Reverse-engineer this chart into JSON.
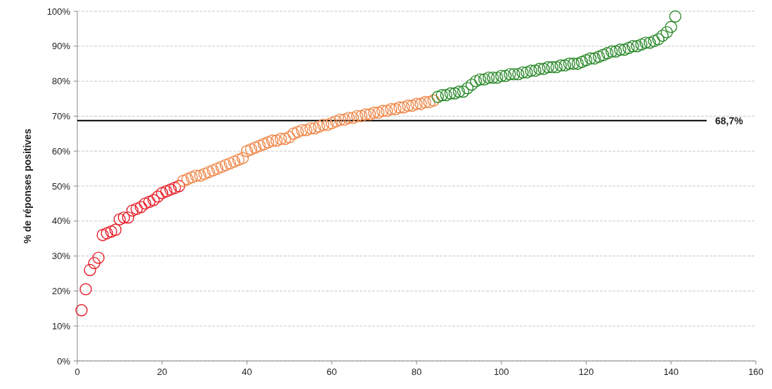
{
  "chart_data": {
    "type": "scatter",
    "ylabel": "% de réponses positives",
    "marker": "circle",
    "grid": "y",
    "xlim": [
      0,
      160
    ],
    "xticks": [
      0,
      20,
      40,
      60,
      80,
      100,
      120,
      140,
      160
    ],
    "ylim": [
      0,
      100
    ],
    "yticks": [
      {
        "value": 0,
        "label": "0%"
      },
      {
        "value": 10,
        "label": "10%"
      },
      {
        "value": 20,
        "label": "20%"
      },
      {
        "value": 30,
        "label": "30%"
      },
      {
        "value": 40,
        "label": "40%"
      },
      {
        "value": 50,
        "label": "50%"
      },
      {
        "value": 60,
        "label": "60%"
      },
      {
        "value": 70,
        "label": "70%"
      },
      {
        "value": 80,
        "label": "80%"
      },
      {
        "value": 90,
        "label": "90%"
      },
      {
        "value": 100,
        "label": "100%"
      }
    ],
    "ref_lines": [
      {
        "axis": "y",
        "value": 68.7,
        "label": "68,7%",
        "color": "#000000"
      }
    ],
    "series": [
      {
        "color": "#e8202a",
        "x": [
          1,
          2,
          3,
          4,
          5,
          6,
          7,
          8,
          9,
          10,
          11,
          12,
          13,
          14,
          15,
          16,
          17,
          18,
          19,
          20,
          21,
          22,
          23,
          24
        ],
        "values": [
          14.5,
          20.5,
          26,
          28,
          29.5,
          36,
          36.5,
          37,
          37.5,
          40.5,
          41,
          41,
          43,
          43.5,
          44,
          45,
          45.5,
          46,
          47,
          48,
          48.5,
          49,
          49.5,
          50
        ]
      },
      {
        "color": "#f0884a",
        "x": [
          25,
          26,
          27,
          28,
          29,
          30,
          31,
          32,
          33,
          34,
          35,
          36,
          37,
          38,
          39,
          40,
          41,
          42,
          43,
          44,
          45,
          46,
          47,
          48,
          49,
          50,
          51,
          52,
          53,
          54,
          55,
          56,
          57,
          58,
          59,
          60,
          61,
          62,
          63,
          64,
          65,
          66,
          67,
          68,
          69,
          70,
          71,
          72,
          73,
          74,
          75,
          76,
          77,
          78,
          79,
          80,
          81,
          82,
          83,
          84
        ],
        "values": [
          51.5,
          52,
          52.5,
          53,
          53,
          53.5,
          54,
          54.5,
          55,
          55.5,
          56,
          56.5,
          57,
          57.5,
          58,
          60,
          60.5,
          61,
          61.5,
          62,
          62.5,
          63,
          63,
          63.5,
          63.5,
          64,
          65,
          65.5,
          66,
          66,
          66.5,
          66.5,
          67,
          67.5,
          67.5,
          68,
          68.5,
          69,
          69,
          69.5,
          69.5,
          70,
          70,
          70.5,
          70.5,
          71,
          71,
          71.5,
          71.5,
          72,
          72,
          72.5,
          72.5,
          73,
          73,
          73.5,
          73.5,
          74,
          74,
          74.5
        ]
      },
      {
        "color": "#2e8b2e",
        "x": [
          85,
          86,
          87,
          88,
          89,
          90,
          91,
          92,
          93,
          94,
          95,
          96,
          97,
          98,
          99,
          100,
          101,
          102,
          103,
          104,
          105,
          106,
          107,
          108,
          109,
          110,
          111,
          112,
          113,
          114,
          115,
          116,
          117,
          118,
          119,
          120,
          121,
          122,
          123,
          124,
          125,
          126,
          127,
          128,
          129,
          130,
          131,
          132,
          133,
          134,
          135,
          136,
          137,
          138,
          139,
          140,
          141
        ],
        "values": [
          75.5,
          76,
          76,
          76.5,
          76.5,
          77,
          77,
          78,
          79,
          80,
          80.5,
          80.5,
          81,
          81,
          81,
          81.5,
          81.5,
          82,
          82,
          82,
          82.5,
          82.5,
          83,
          83,
          83.5,
          83.5,
          84,
          84,
          84,
          84.5,
          84.5,
          85,
          85,
          85,
          85.5,
          86,
          86.5,
          86.5,
          87,
          87.5,
          88,
          88.5,
          88.5,
          89,
          89,
          89.5,
          90,
          90,
          90.5,
          91,
          91,
          91.5,
          92,
          93,
          94,
          95.5,
          98.5
        ]
      }
    ]
  }
}
